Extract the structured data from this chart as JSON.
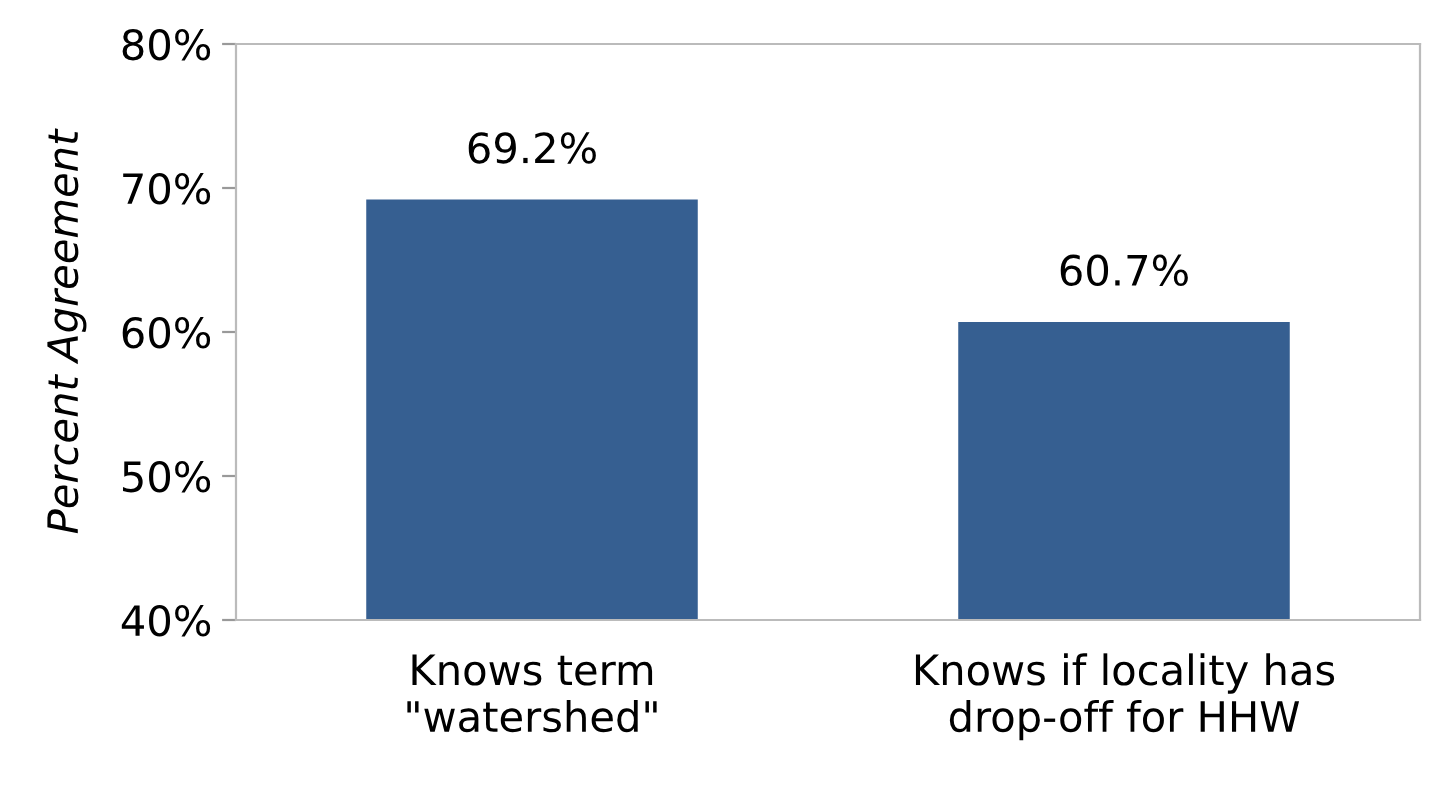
{
  "chart_data": {
    "type": "bar",
    "ylabel": "Percent Agreement",
    "categories": [
      "Knows term\n\"watershed\"",
      "Knows if locality has\ndrop-off for HHW"
    ],
    "values": [
      69.2,
      60.7
    ],
    "color": "#365f91",
    "value_labels": [
      "69.2%",
      "60.7%"
    ],
    "ylim": [
      40,
      80
    ],
    "yticks": [
      {
        "value": 40,
        "label": "40%"
      },
      {
        "value": 50,
        "label": "50%"
      },
      {
        "value": 60,
        "label": "60%"
      },
      {
        "value": 70,
        "label": "70%"
      },
      {
        "value": 80,
        "label": "80%"
      }
    ],
    "grid": false
  }
}
